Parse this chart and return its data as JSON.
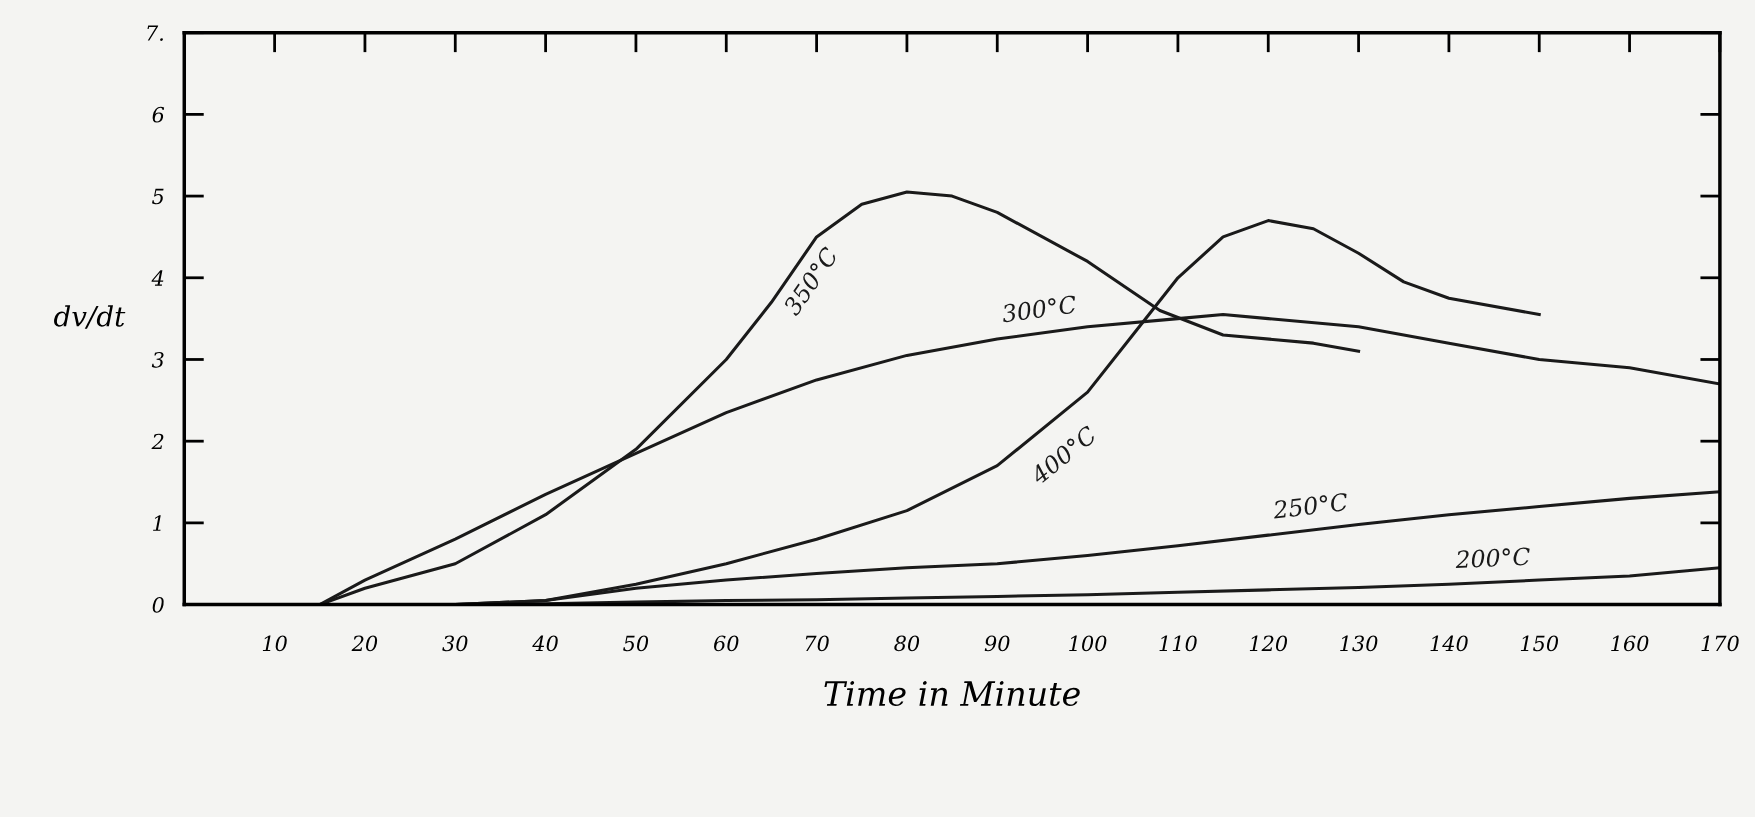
{
  "chart_data": {
    "type": "line",
    "xlabel": "Time in Minute",
    "ylabel": "dv/dt",
    "xlim": [
      0,
      170
    ],
    "ylim": [
      0,
      7
    ],
    "xticks": [
      10,
      20,
      30,
      40,
      50,
      60,
      70,
      80,
      90,
      100,
      110,
      120,
      130,
      140,
      150,
      160,
      170
    ],
    "yticks": [
      0,
      1,
      2,
      3,
      4,
      5,
      6,
      {
        "value": 7,
        "label": "7."
      }
    ],
    "grid": false,
    "legend": false,
    "marker": "none",
    "line_style": "solid",
    "series": [
      {
        "name": "350°C",
        "color": "#1a1a1a",
        "x": [
          15,
          20,
          30,
          40,
          50,
          60,
          65,
          70,
          75,
          80,
          85,
          90,
          100,
          108,
          115,
          125,
          130
        ],
        "values": [
          0,
          0.2,
          0.5,
          1.1,
          1.9,
          3.0,
          3.7,
          4.5,
          4.9,
          5.05,
          5.0,
          4.8,
          4.2,
          3.6,
          3.3,
          3.2,
          3.1
        ]
      },
      {
        "name": "300°C",
        "color": "#1a1a1a",
        "x": [
          15,
          20,
          30,
          40,
          50,
          60,
          70,
          80,
          90,
          100,
          110,
          115,
          120,
          130,
          140,
          150,
          160,
          170
        ],
        "values": [
          0,
          0.3,
          0.8,
          1.35,
          1.85,
          2.35,
          2.75,
          3.05,
          3.25,
          3.4,
          3.5,
          3.55,
          3.5,
          3.4,
          3.2,
          3.0,
          2.9,
          2.7
        ]
      },
      {
        "name": "400°C",
        "color": "#1a1a1a",
        "x": [
          30,
          40,
          50,
          60,
          70,
          80,
          90,
          100,
          105,
          110,
          115,
          120,
          125,
          130,
          135,
          140,
          150
        ],
        "values": [
          0,
          0.05,
          0.25,
          0.5,
          0.8,
          1.15,
          1.7,
          2.6,
          3.3,
          4.0,
          4.5,
          4.7,
          4.6,
          4.3,
          3.95,
          3.75,
          3.55
        ]
      },
      {
        "name": "250°C",
        "color": "#1a1a1a",
        "x": [
          30,
          40,
          50,
          60,
          70,
          80,
          90,
          100,
          110,
          120,
          130,
          140,
          150,
          160,
          170
        ],
        "values": [
          0,
          0.05,
          0.2,
          0.3,
          0.38,
          0.45,
          0.5,
          0.6,
          0.72,
          0.85,
          0.98,
          1.1,
          1.2,
          1.3,
          1.38
        ]
      },
      {
        "name": "200°C",
        "color": "#1a1a1a",
        "x": [
          10,
          20,
          30,
          40,
          50,
          60,
          70,
          80,
          90,
          100,
          110,
          120,
          130,
          140,
          150,
          160,
          170
        ],
        "values": [
          0,
          0,
          0,
          0.01,
          0.03,
          0.05,
          0.06,
          0.08,
          0.1,
          0.12,
          0.15,
          0.18,
          0.21,
          0.25,
          0.3,
          0.35,
          0.45
        ]
      }
    ]
  }
}
